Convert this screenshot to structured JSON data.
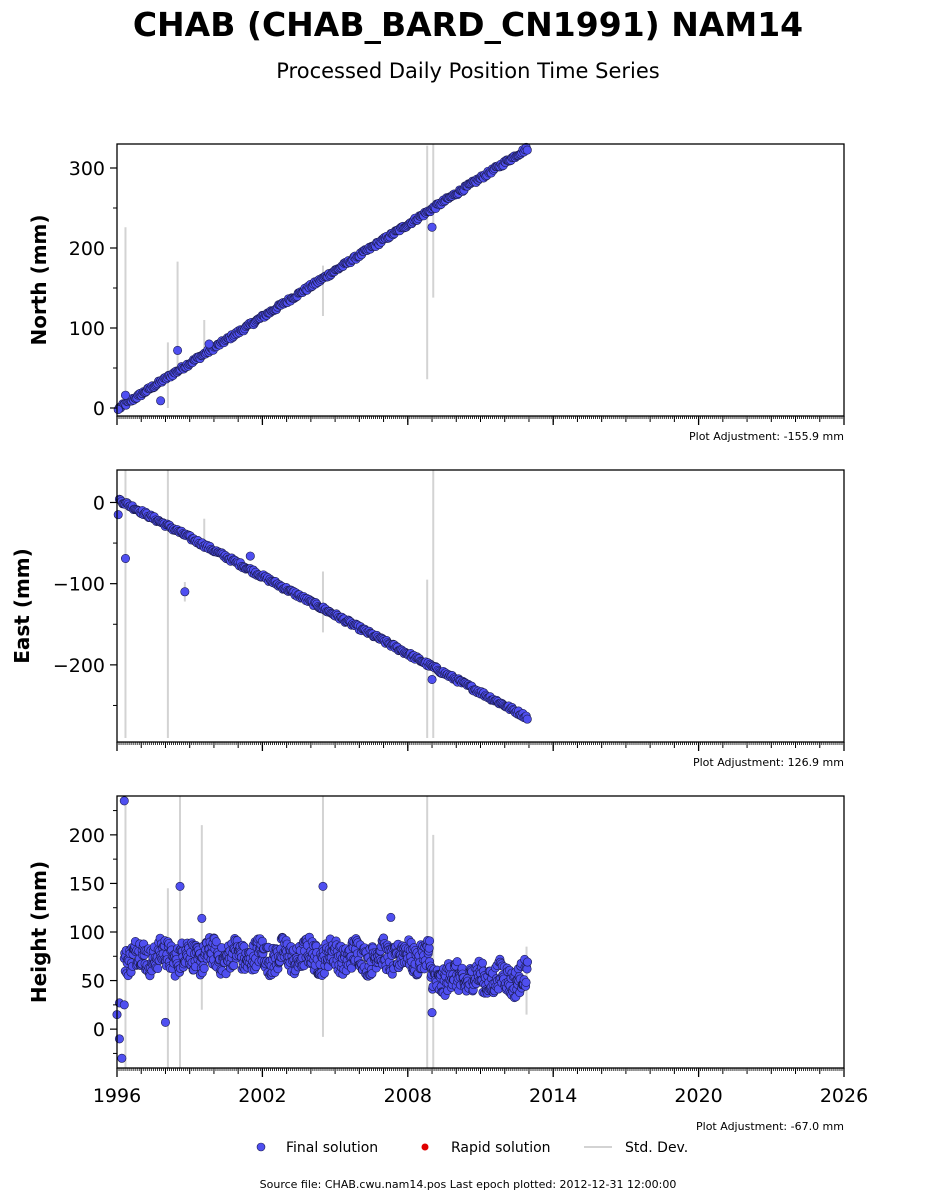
{
  "figure": {
    "title": "CHAB (CHAB_BARD_CN1991) NAM14",
    "subtitle": "Processed Daily Position Time Series",
    "footer": "Source file: CHAB.cwu.nam14.pos  Last epoch plotted: 2012-12-31 12:00:00"
  },
  "legend": {
    "final": "Final solution",
    "rapid": "Rapid solution",
    "std": "Std. Dev."
  },
  "colors": {
    "final": "#4f4ff0",
    "final_edge": "#1a1a4a",
    "rapid": "#e00000",
    "std": "#d3d3d3",
    "axis": "#000000"
  },
  "chart_data": [
    {
      "type": "scatter",
      "panel": "north",
      "ylabel": "North (mm)",
      "adjustment": "Plot Adjustment: -155.9 mm",
      "xlim": [
        1996,
        2026
      ],
      "ylim": [
        -10,
        330
      ],
      "yticks": [
        0,
        100,
        200,
        300
      ],
      "trend": [
        [
          1996.1,
          0
        ],
        [
          2012.95,
          325
        ]
      ],
      "series": [
        {
          "name": "Final solution",
          "points": [
            [
              1996.05,
              -2
            ],
            [
              1996.35,
              16
            ],
            [
              1997.8,
              9
            ],
            [
              1998.5,
              72
            ],
            [
              1999.8,
              80
            ],
            [
              2009.0,
              226
            ]
          ]
        }
      ],
      "errorbars": [
        [
          1996.35,
          0,
          226
        ],
        [
          1998.1,
          0,
          82
        ],
        [
          1998.5,
          40,
          183
        ],
        [
          1999.6,
          60,
          110
        ],
        [
          2004.5,
          115,
          178
        ],
        [
          2008.8,
          36,
          328
        ],
        [
          2009.05,
          138,
          330
        ]
      ]
    },
    {
      "type": "scatter",
      "panel": "east",
      "ylabel": "East (mm)",
      "adjustment": "Plot Adjustment: 126.9 mm",
      "xlim": [
        1996,
        2026
      ],
      "ylim": [
        -295,
        40
      ],
      "yticks": [
        0,
        -100,
        -200
      ],
      "trend": [
        [
          1996.1,
          3
        ],
        [
          2012.95,
          -265
        ]
      ],
      "series": [
        {
          "name": "Final solution",
          "points": [
            [
              1996.05,
              -15
            ],
            [
              1996.35,
              -69
            ],
            [
              1998.8,
              -110
            ],
            [
              2001.5,
              -66
            ],
            [
              2009.0,
              -218
            ]
          ]
        }
      ],
      "errorbars": [
        [
          1996.35,
          -290,
          40
        ],
        [
          1998.1,
          -290,
          40
        ],
        [
          1998.8,
          -122,
          -98
        ],
        [
          1999.6,
          -60,
          -20
        ],
        [
          2004.5,
          -160,
          -85
        ],
        [
          2008.8,
          -290,
          -95
        ],
        [
          2009.05,
          -290,
          40
        ]
      ]
    },
    {
      "type": "scatter",
      "panel": "height",
      "ylabel": "Height (mm)",
      "adjustment": "Plot Adjustment: -67.0 mm",
      "xlim": [
        1996,
        2026
      ],
      "ylim": [
        -40,
        240
      ],
      "yticks": [
        0,
        50,
        100,
        150,
        200
      ],
      "levels": [
        [
          1996.3,
          2008.9,
          75
        ],
        [
          2008.9,
          2012.95,
          52
        ]
      ],
      "series": [
        {
          "name": "Final solution",
          "points": [
            [
              1996.3,
              235
            ],
            [
              1996.1,
              27
            ],
            [
              1996.3,
              25
            ],
            [
              1998.0,
              7
            ],
            [
              1998.6,
              147
            ],
            [
              1999.5,
              114
            ],
            [
              2004.5,
              147
            ],
            [
              2007.3,
              115
            ],
            [
              2009.0,
              17
            ],
            [
              1996.0,
              15
            ],
            [
              1996.1,
              -10
            ],
            [
              1996.2,
              -30
            ]
          ]
        }
      ],
      "errorbars": [
        [
          1996.35,
          -40,
          240
        ],
        [
          1998.1,
          -40,
          145
        ],
        [
          1998.6,
          -40,
          240
        ],
        [
          1999.5,
          20,
          210
        ],
        [
          2004.5,
          -8,
          240
        ],
        [
          2008.8,
          -40,
          240
        ],
        [
          2009.05,
          -40,
          200
        ],
        [
          2012.9,
          15,
          85
        ]
      ]
    }
  ],
  "x_axis": {
    "ticks": [
      1996,
      2002,
      2008,
      2014,
      2020,
      2026
    ]
  }
}
